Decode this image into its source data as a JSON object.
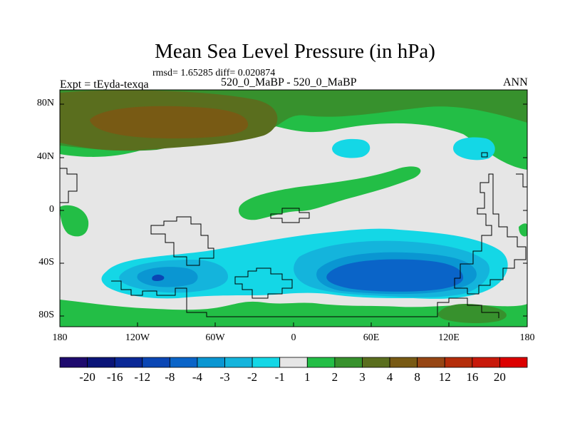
{
  "figure": {
    "title": "Mean Sea Level Pressure (in hPa)",
    "stats": "rmsd= 1.65285  diff= 0.020874",
    "left_label": "Expt = tEyda-texqa",
    "center_label": "520_0_MaBP - 520_0_MaBP",
    "right_label": "ANN"
  },
  "axes": {
    "y_ticks": [
      "80N",
      "40N",
      "0",
      "40S",
      "80S"
    ],
    "x_ticks": [
      "180",
      "120W",
      "60W",
      "0",
      "60E",
      "120E",
      "180"
    ]
  },
  "colorbar": {
    "labels": [
      "-20",
      "-16",
      "-12",
      "-8",
      "-4",
      "-3",
      "-2",
      "-1",
      "1",
      "2",
      "3",
      "4",
      "8",
      "12",
      "16",
      "20"
    ],
    "colors": [
      "#1e0a6e",
      "#0a1478",
      "#0a2896",
      "#0a46b4",
      "#0a64c8",
      "#0a96d2",
      "#14b4dc",
      "#14d7e6",
      "#e6e6e6",
      "#23be46",
      "#37912d",
      "#5a6e1e",
      "#785a14",
      "#964614",
      "#b42d0a",
      "#c8190a",
      "#dc0000"
    ]
  },
  "palette": {
    "background": "#e6e6e6",
    "pos1": "#23be46",
    "pos2": "#37912d",
    "pos3": "#5a6e1e",
    "pos4": "#785a14",
    "neg1": "#14d7e6",
    "neg2": "#14b4dc",
    "neg3": "#0a96d2",
    "neg4": "#0a64c8",
    "neg5": "#0a46b4",
    "coast": "#000000"
  }
}
